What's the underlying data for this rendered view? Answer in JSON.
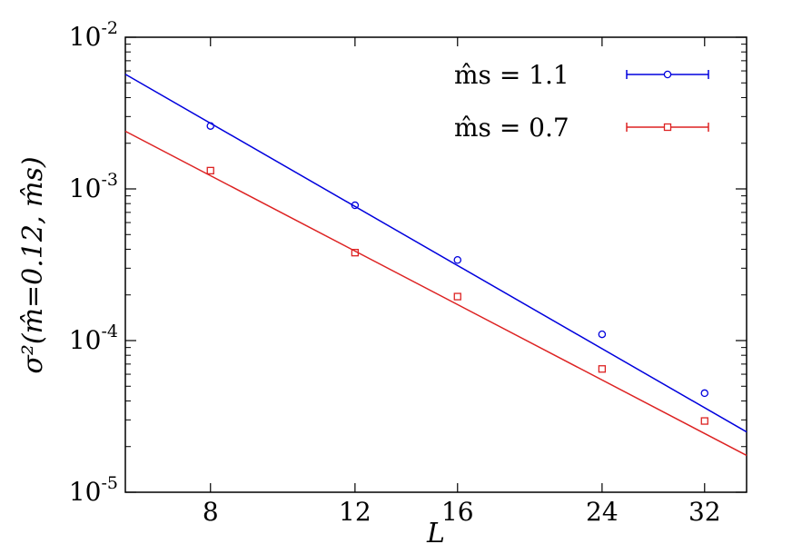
{
  "chart_data": {
    "type": "scatter",
    "x_scale": "log",
    "y_scale": "log",
    "xlim": [
      6.3,
      36
    ],
    "ylim": [
      1e-05,
      0.01
    ],
    "x_ticks": [
      8,
      12,
      16,
      24,
      32
    ],
    "x_tick_labels": [
      "8",
      "12",
      "16",
      "24",
      "32"
    ],
    "y_ticks": [
      1e-05,
      0.0001,
      0.001,
      0.01
    ],
    "y_tick_labels": [
      {
        "base": "10",
        "exp": "-5"
      },
      {
        "base": "10",
        "exp": "-4"
      },
      {
        "base": "10",
        "exp": "-3"
      },
      {
        "base": "10",
        "exp": "-2"
      }
    ],
    "xlabel": "L",
    "ylabel": "σ²(m̂=0.12, m̂s)",
    "legend_position": "top-right",
    "series": [
      {
        "name": "m̂s = 1.1",
        "color": "#0000dd",
        "marker": "circle",
        "points": [
          {
            "x": 8,
            "y": 0.0026
          },
          {
            "x": 12,
            "y": 0.00078
          },
          {
            "x": 16,
            "y": 0.00034
          },
          {
            "x": 24,
            "y": 0.00011
          },
          {
            "x": 32,
            "y": 4.5e-05
          }
        ],
        "fit": [
          {
            "x": 6.3,
            "y": 0.0057
          },
          {
            "x": 36,
            "y": 2.5e-05
          }
        ]
      },
      {
        "name": "m̂s = 0.7",
        "color": "#dd2222",
        "marker": "square",
        "points": [
          {
            "x": 8,
            "y": 0.00132
          },
          {
            "x": 12,
            "y": 0.00038
          },
          {
            "x": 16,
            "y": 0.000195
          },
          {
            "x": 24,
            "y": 6.5e-05
          },
          {
            "x": 32,
            "y": 2.95e-05
          }
        ],
        "fit": [
          {
            "x": 6.3,
            "y": 0.0024
          },
          {
            "x": 36,
            "y": 1.75e-05
          }
        ]
      }
    ]
  }
}
